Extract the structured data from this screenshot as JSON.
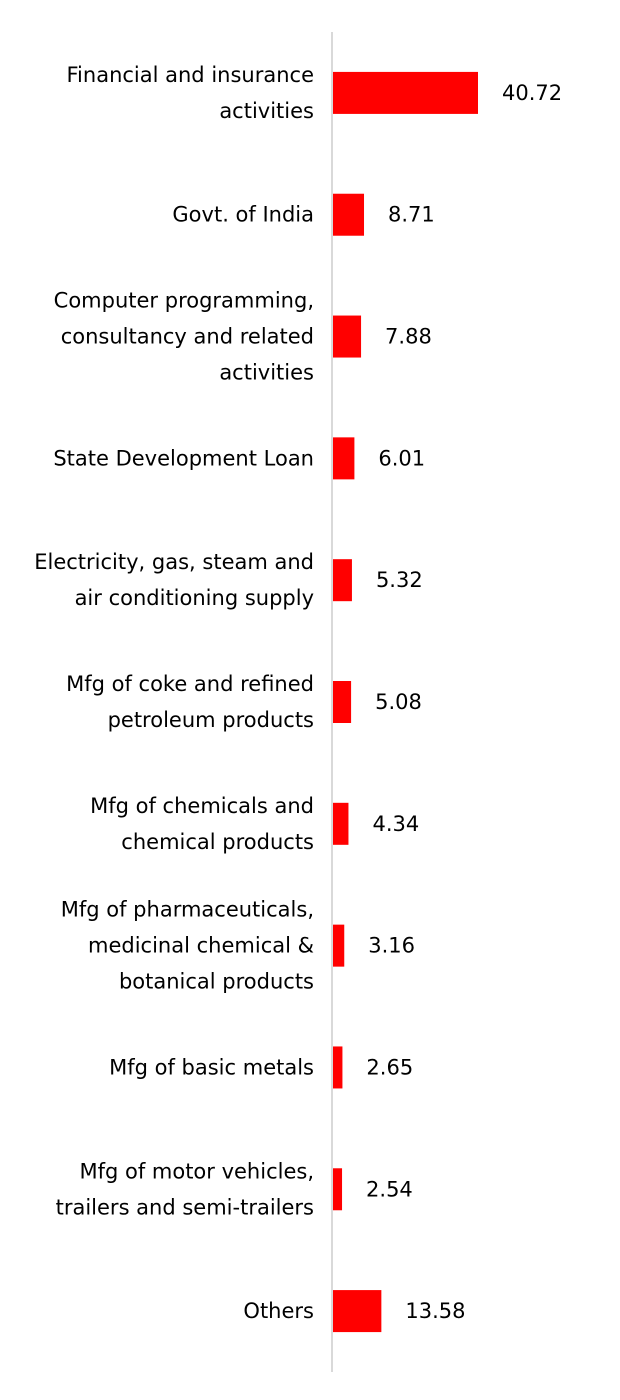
{
  "chart_data": {
    "type": "bar",
    "orientation": "horizontal",
    "categories": [
      [
        "Financial and insurance",
        "activities"
      ],
      [
        "Govt. of India"
      ],
      [
        "Computer programming,",
        "consultancy and related",
        "activities"
      ],
      [
        "State Development Loan"
      ],
      [
        "Electricity, gas, steam and",
        "air conditioning supply"
      ],
      [
        "Mfg of coke and refined",
        "petroleum products"
      ],
      [
        "Mfg of chemicals and",
        "chemical products"
      ],
      [
        "Mfg of pharmaceuticals,",
        "medicinal chemical &",
        "botanical products"
      ],
      [
        "Mfg of basic metals"
      ],
      [
        "Mfg of motor vehicles,",
        "trailers and semi-trailers"
      ],
      [
        "Others"
      ]
    ],
    "values": [
      40.72,
      8.71,
      7.88,
      6.01,
      5.32,
      5.08,
      4.34,
      3.16,
      2.65,
      2.54,
      13.58
    ],
    "value_labels": [
      "40.72",
      "8.71",
      "7.88",
      "6.01",
      "5.32",
      "5.08",
      "4.34",
      "3.16",
      "2.65",
      "2.54",
      "13.58"
    ],
    "bar_color": "#ff0000",
    "axis_color": "#d9d9d9",
    "xlim": [
      0,
      40.72
    ],
    "grid": false,
    "legend": "none",
    "title": "",
    "xlabel": "",
    "ylabel": ""
  }
}
